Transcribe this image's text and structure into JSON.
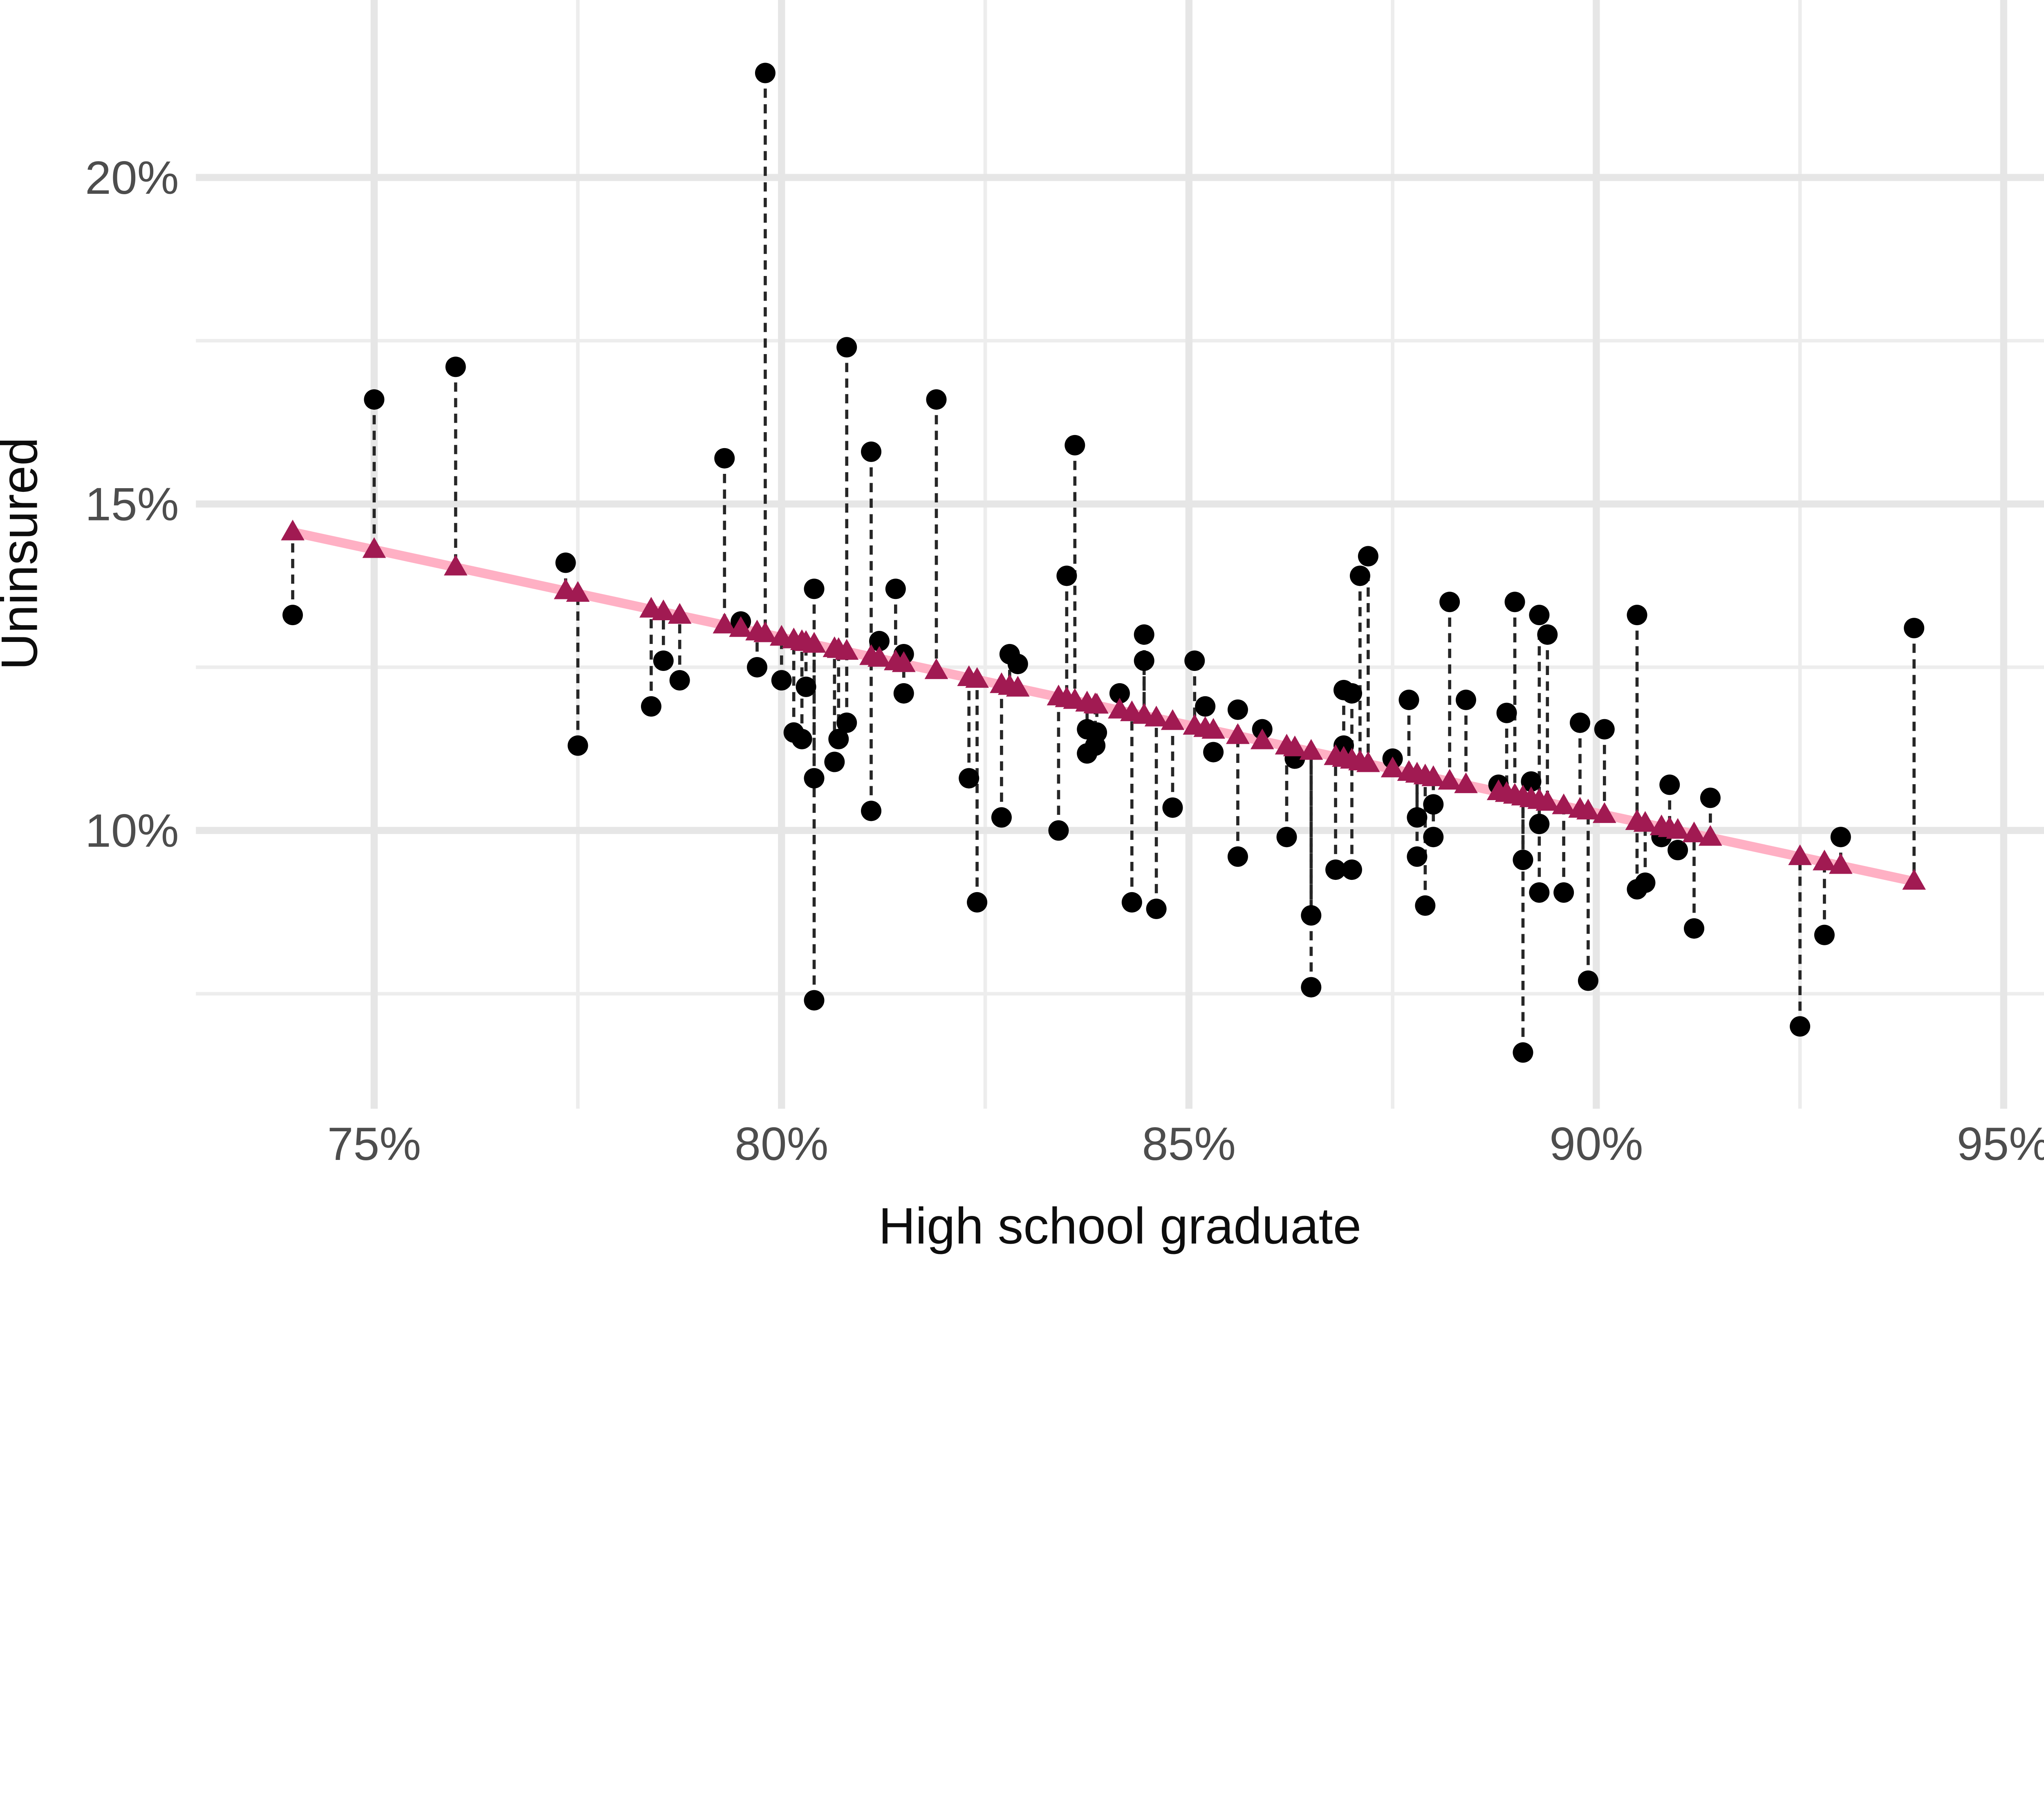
{
  "chart_data": {
    "type": "scatter",
    "title": "",
    "xlabel": "High school graduate",
    "ylabel": "Uninsured",
    "x_ticks": [
      {
        "value": 75,
        "label": "75%"
      },
      {
        "value": 80,
        "label": "80%"
      },
      {
        "value": 85,
        "label": "85%"
      },
      {
        "value": 90,
        "label": "90%"
      },
      {
        "value": 95,
        "label": "95%"
      }
    ],
    "x_minor_ticks": [
      77.5,
      82.5,
      87.5,
      92.5
    ],
    "y_ticks": [
      {
        "value": 10,
        "label": "10%"
      },
      {
        "value": 15,
        "label": "15%"
      },
      {
        "value": 20,
        "label": "20%"
      }
    ],
    "y_minor_ticks": [
      7.5,
      12.5,
      17.5
    ],
    "xlim": [
      72.8,
      95.5
    ],
    "ylim": [
      5.7,
      22.7
    ],
    "legend": "none",
    "grid": "on",
    "fit_line": {
      "intercept": 34.46,
      "slope": -0.2688,
      "x_min": 74.0,
      "x_max": 93.9
    },
    "series": [
      {
        "name": "observed",
        "marker": "circle",
        "points": [
          [
            74.0,
            13.3
          ],
          [
            75.0,
            16.6
          ],
          [
            76.0,
            17.1
          ],
          [
            77.35,
            14.1
          ],
          [
            77.5,
            11.3
          ],
          [
            78.4,
            11.9
          ],
          [
            78.55,
            12.6
          ],
          [
            78.75,
            12.3
          ],
          [
            79.3,
            15.7
          ],
          [
            79.5,
            13.2
          ],
          [
            79.7,
            12.5
          ],
          [
            79.8,
            21.6
          ],
          [
            80.0,
            12.3
          ],
          [
            80.3,
            12.2
          ],
          [
            80.15,
            11.5
          ],
          [
            80.25,
            11.4
          ],
          [
            80.4,
            13.7
          ],
          [
            80.4,
            10.8
          ],
          [
            80.4,
            7.4
          ],
          [
            80.65,
            11.05
          ],
          [
            80.7,
            11.4
          ],
          [
            80.8,
            11.65
          ],
          [
            80.8,
            17.4
          ],
          [
            81.1,
            15.8
          ],
          [
            81.1,
            10.3
          ],
          [
            81.2,
            12.9
          ],
          [
            81.4,
            13.7
          ],
          [
            81.5,
            12.7
          ],
          [
            81.5,
            12.1
          ],
          [
            81.9,
            16.6
          ],
          [
            82.3,
            10.8
          ],
          [
            82.4,
            8.9
          ],
          [
            82.7,
            10.2
          ],
          [
            82.8,
            12.7
          ],
          [
            82.9,
            12.55
          ],
          [
            83.4,
            10.0
          ],
          [
            83.5,
            13.9
          ],
          [
            83.6,
            15.9
          ],
          [
            83.75,
            11.55
          ],
          [
            83.87,
            11.5
          ],
          [
            83.85,
            11.3
          ],
          [
            83.75,
            11.18
          ],
          [
            84.15,
            12.1
          ],
          [
            84.3,
            8.9
          ],
          [
            84.45,
            13.0
          ],
          [
            84.45,
            12.6
          ],
          [
            84.6,
            8.8
          ],
          [
            84.8,
            10.35
          ],
          [
            85.07,
            12.6
          ],
          [
            85.2,
            11.9
          ],
          [
            85.3,
            11.2
          ],
          [
            85.6,
            11.85
          ],
          [
            85.6,
            9.6
          ],
          [
            85.9,
            11.55
          ],
          [
            86.2,
            9.9
          ],
          [
            86.3,
            11.1
          ],
          [
            86.5,
            8.7
          ],
          [
            86.5,
            7.6
          ],
          [
            86.8,
            9.4
          ],
          [
            87.0,
            9.4
          ],
          [
            86.9,
            11.3
          ],
          [
            86.9,
            12.15
          ],
          [
            87.0,
            12.1
          ],
          [
            87.2,
            14.2
          ],
          [
            87.1,
            13.9
          ],
          [
            87.5,
            11.1
          ],
          [
            87.7,
            12.0
          ],
          [
            87.8,
            10.2
          ],
          [
            88.0,
            10.4
          ],
          [
            88.0,
            9.9
          ],
          [
            87.8,
            9.6
          ],
          [
            87.9,
            8.85
          ],
          [
            88.2,
            13.5
          ],
          [
            88.4,
            12.0
          ],
          [
            88.8,
            10.7
          ],
          [
            88.9,
            11.8
          ],
          [
            89.0,
            13.5
          ],
          [
            89.2,
            10.75
          ],
          [
            89.1,
            9.55
          ],
          [
            89.1,
            6.6
          ],
          [
            89.3,
            13.3
          ],
          [
            89.4,
            13.0
          ],
          [
            89.3,
            10.1
          ],
          [
            89.3,
            9.05
          ],
          [
            89.6,
            9.05
          ],
          [
            89.8,
            11.65
          ],
          [
            89.9,
            7.7
          ],
          [
            90.1,
            11.55
          ],
          [
            90.5,
            13.3
          ],
          [
            90.5,
            9.1
          ],
          [
            90.6,
            9.2
          ],
          [
            90.8,
            9.9
          ],
          [
            90.9,
            10.7
          ],
          [
            91.0,
            9.7
          ],
          [
            91.2,
            8.5
          ],
          [
            91.4,
            10.5
          ],
          [
            92.5,
            7.0
          ],
          [
            92.8,
            8.4
          ],
          [
            93.0,
            9.9
          ],
          [
            93.9,
            13.1
          ]
        ]
      },
      {
        "name": "fitted",
        "marker": "triangle",
        "note": "fitted value at each observed x, computed from fit_line"
      }
    ],
    "colors": {
      "point": "#000000",
      "triangle": "#A11A52",
      "fit_line": "#FFB0C4",
      "residual_dash": "#262626",
      "grid_major": "#E6E6E6",
      "grid_minor": "#EDEDED",
      "tick_text": "#4d4d4d",
      "title_text": "#0d0d0d",
      "background": "#ffffff"
    }
  }
}
